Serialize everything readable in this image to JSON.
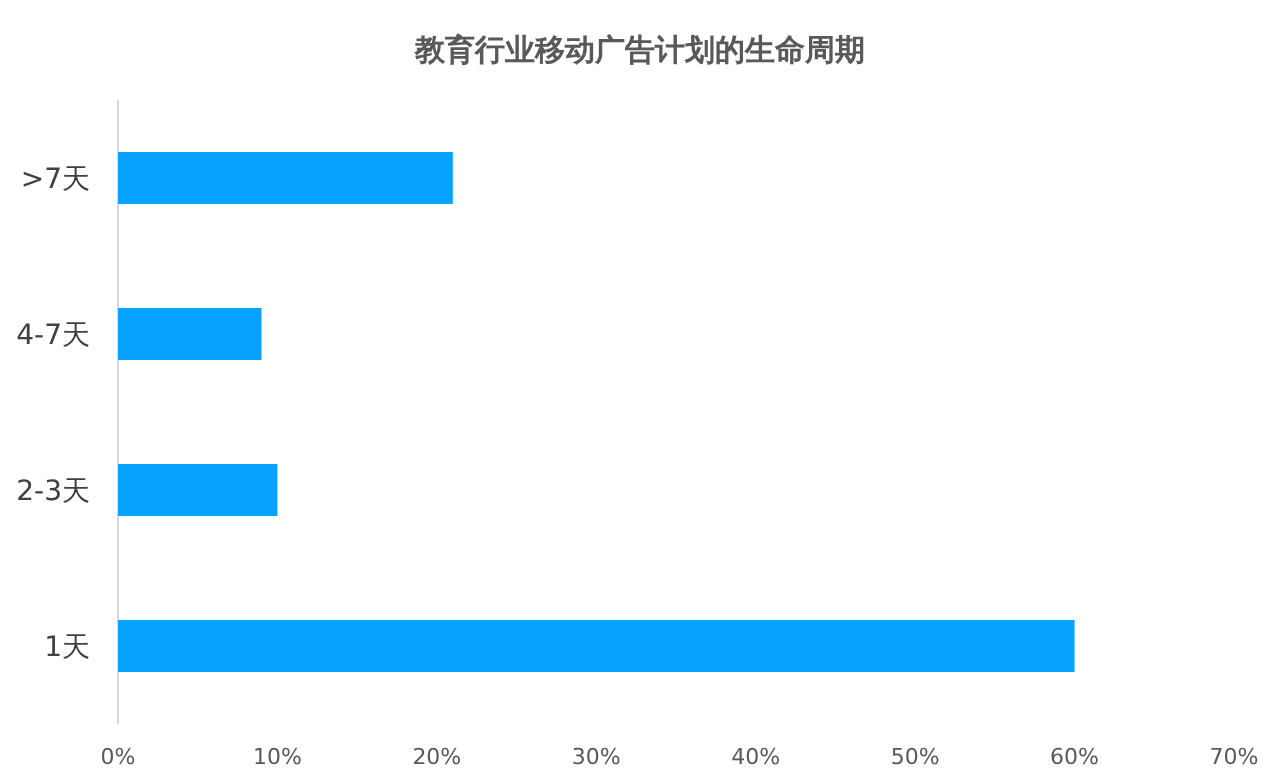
{
  "chart_data": {
    "type": "bar",
    "orientation": "horizontal",
    "title": "教育行业移动广告计划的生命周期",
    "categories": [
      ">7天",
      "4-7天",
      "2-3天",
      "1天"
    ],
    "values": [
      21,
      9,
      10,
      60
    ],
    "color": "#05a2fe",
    "xlim": [
      0,
      70
    ],
    "xticks": [
      {
        "value": 0,
        "label": "0%"
      },
      {
        "value": 10,
        "label": "10%"
      },
      {
        "value": 20,
        "label": "20%"
      },
      {
        "value": 30,
        "label": "30%"
      },
      {
        "value": 40,
        "label": "40%"
      },
      {
        "value": 50,
        "label": "50%"
      },
      {
        "value": 60,
        "label": "60%"
      },
      {
        "value": 70,
        "label": "70%"
      }
    ],
    "grid": false
  }
}
